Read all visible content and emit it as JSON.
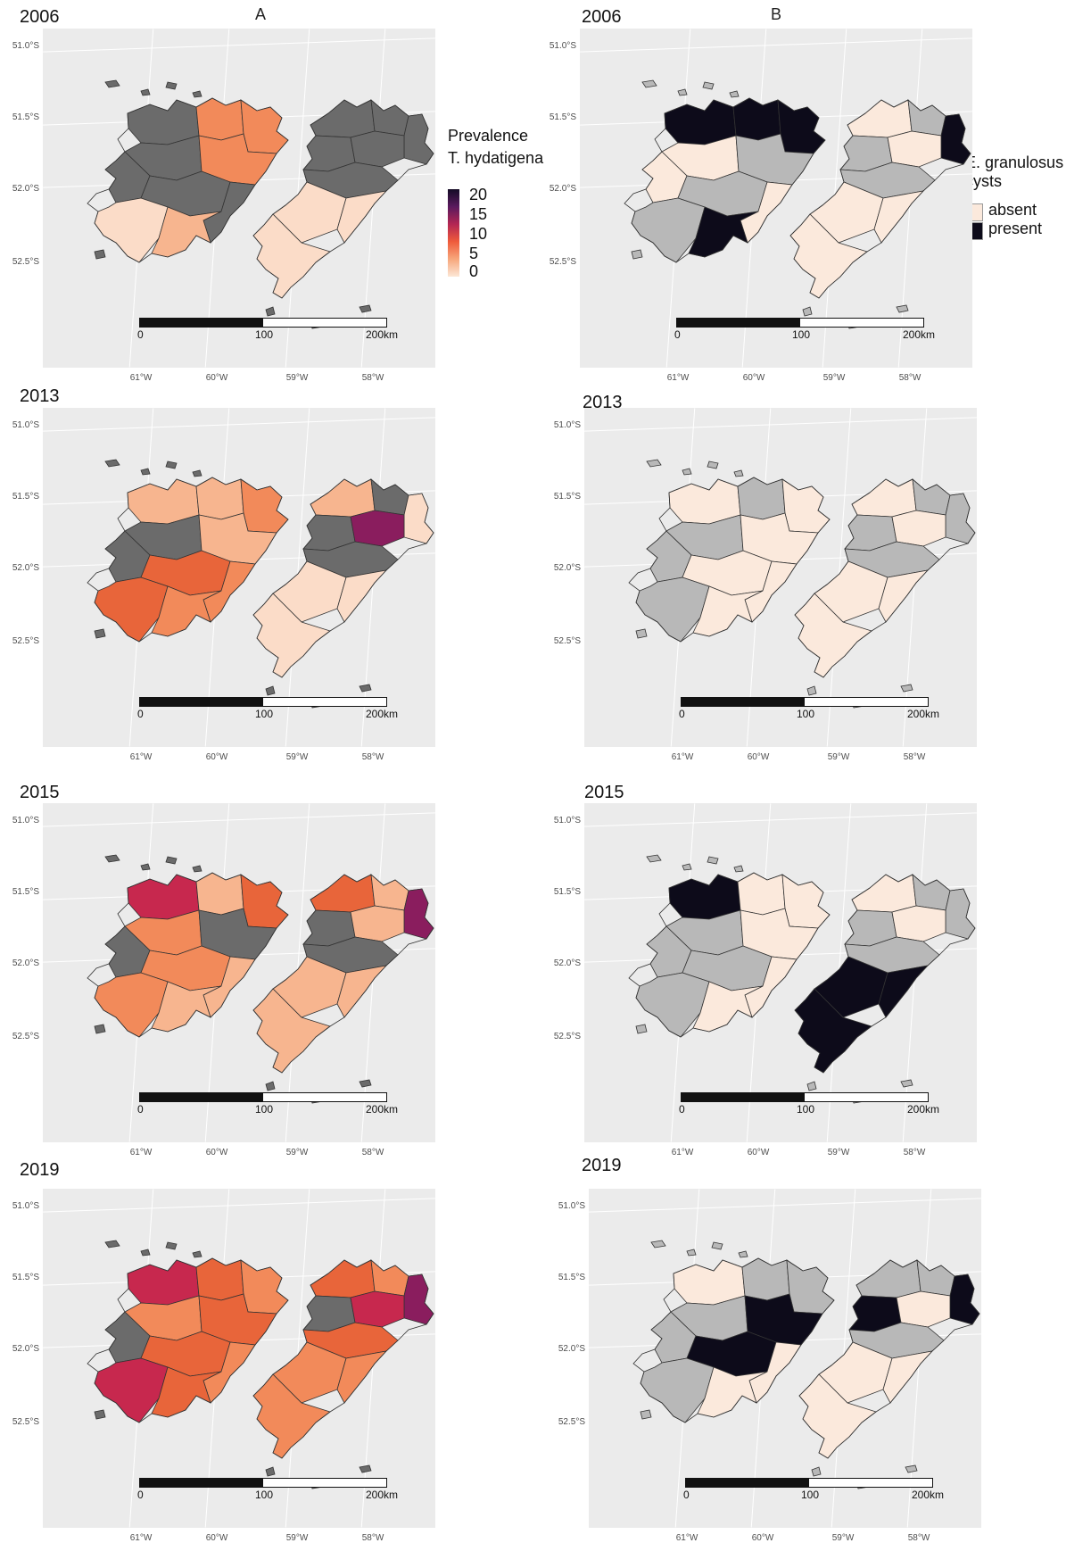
{
  "columns": {
    "A": "A",
    "B": "B"
  },
  "lat_labels": [
    "51.0°S",
    "51.5°S",
    "52.0°S",
    "52.5°S"
  ],
  "lon_labels": [
    "61°W",
    "60°W",
    "59°W",
    "58°W"
  ],
  "scale": {
    "zero": "0",
    "mid": "100",
    "end": "200km"
  },
  "legend_A": {
    "title_line1": "Prevalence",
    "title_line2": "T. hydatigena",
    "ticks": [
      "20",
      "15",
      "10",
      "5",
      "0"
    ],
    "colors": [
      "#140c26",
      "#5a1a5e",
      "#b32653",
      "#ef5b3b",
      "#f7a77c",
      "#fce7d6"
    ]
  },
  "legend_B": {
    "title_line1": "E. granulosus",
    "title_line2": "cysts",
    "items": [
      {
        "label": "absent",
        "color": "#fbe9dc"
      },
      {
        "label": "present",
        "color": "#0d0b1a"
      }
    ]
  },
  "no_data_color": "#6b6b6b",
  "panels_A": [
    {
      "year": "2006"
    },
    {
      "year": "2013"
    },
    {
      "year": "2015"
    },
    {
      "year": "2019"
    }
  ],
  "panels_B": [
    {
      "year": "2006"
    },
    {
      "year": "2013"
    },
    {
      "year": "2015"
    },
    {
      "year": "2019"
    }
  ]
}
